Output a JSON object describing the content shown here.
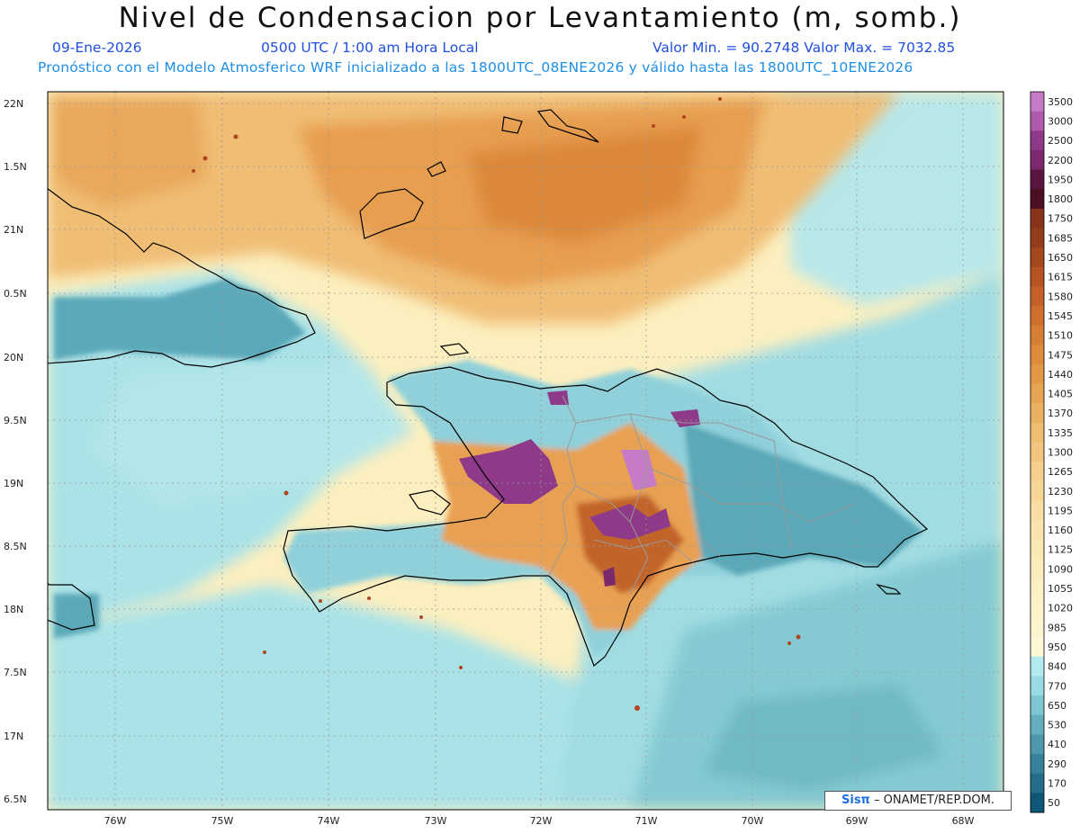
{
  "header": {
    "title": "Nivel de Condensacion por Levantamiento (m, somb.)",
    "date": "09-Ene-2026",
    "time": "0500 UTC / 1:00 am Hora Local",
    "minmax": "Valor Min. = 90.2748   Valor Max. = 7032.85",
    "model_info": "Pronóstico con el Modelo Atmosferico WRF inicializado a las 1800UTC_08ENE2026 y válido hasta las  1800UTC_10ENE2026"
  },
  "map": {
    "lat_labels": [
      "22N",
      "1.5N",
      "21N",
      "0.5N",
      "20N",
      "9.5N",
      "19N",
      "8.5N",
      "18N",
      "7.5N",
      "17N",
      "6.5N"
    ],
    "lon_labels": [
      "76W",
      "75W",
      "74W",
      "73W",
      "72W",
      "71W",
      "70W",
      "69W",
      "68W"
    ]
  },
  "legend": {
    "levels": [
      "3500",
      "3000",
      "2500",
      "2200",
      "1950",
      "1800",
      "1750",
      "1685",
      "1650",
      "1615",
      "1580",
      "1545",
      "1510",
      "1475",
      "1440",
      "1405",
      "1370",
      "1335",
      "1300",
      "1265",
      "1230",
      "1195",
      "1160",
      "1125",
      "1090",
      "1055",
      "1020",
      "985",
      "950",
      "840",
      "770",
      "650",
      "530",
      "410",
      "290",
      "170",
      "50"
    ],
    "colors": [
      "#c77bc6",
      "#b05cae",
      "#8e3a88",
      "#7a2a6c",
      "#5a1540",
      "#4b0e22",
      "#86331a",
      "#943c1c",
      "#a4461f",
      "#b65423",
      "#c56128",
      "#cf6f2e",
      "#d77e35",
      "#de8b3c",
      "#e39846",
      "#e7a553",
      "#ebb262",
      "#efbd71",
      "#f2c67f",
      "#f5cf8c",
      "#f6d798",
      "#f8dea3",
      "#f9e4ad",
      "#fae8b5",
      "#fbecbd",
      "#fcf0c4",
      "#fdf3ca",
      "#fdf5cf",
      "#fef8d8",
      "#b3ecf0",
      "#98dbe3",
      "#7ec6d2",
      "#64afbf",
      "#4d98ad",
      "#37829b",
      "#246c88",
      "#0f5777"
    ]
  },
  "credit": {
    "brand": "Sisπ",
    "text": " – ONAMET/REP.DOM."
  }
}
